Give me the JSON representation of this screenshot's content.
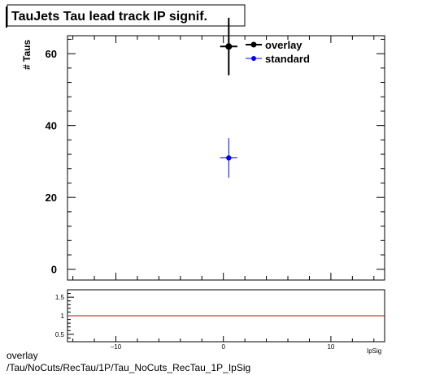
{
  "chart_data": [
    {
      "type": "scatter",
      "title": "TauJets Tau lead track IP signif.",
      "ylabel": "# Taus",
      "xlabel": "IpSig",
      "xlim": [
        -14.5,
        15
      ],
      "ylim": [
        -3,
        65
      ],
      "yticks": [
        0,
        20,
        40,
        60
      ],
      "legend_position": "top-right",
      "series": [
        {
          "name": "overlay",
          "color": "#000000",
          "x": [
            0.5
          ],
          "y": [
            62
          ],
          "yerr": [
            8
          ],
          "xerr": [
            0.5
          ]
        },
        {
          "name": "standard",
          "color": "#0000ff",
          "x": [
            0.5
          ],
          "y": [
            31
          ],
          "yerr": [
            5.5
          ],
          "xerr": [
            0.5
          ]
        }
      ]
    },
    {
      "type": "line",
      "xlim": [
        -14.5,
        15
      ],
      "ylim": [
        0.3,
        1.7
      ],
      "yticks": [
        0.5,
        1,
        1.5
      ],
      "xticks": [
        -10,
        0,
        10
      ],
      "reference_line": {
        "y": 1,
        "color": "#cc0000"
      }
    }
  ],
  "footer": {
    "line1": "overlay",
    "line2": "/Tau/NoCuts/RecTau/1P/Tau_NoCuts_RecTau_1P_IpSig"
  }
}
